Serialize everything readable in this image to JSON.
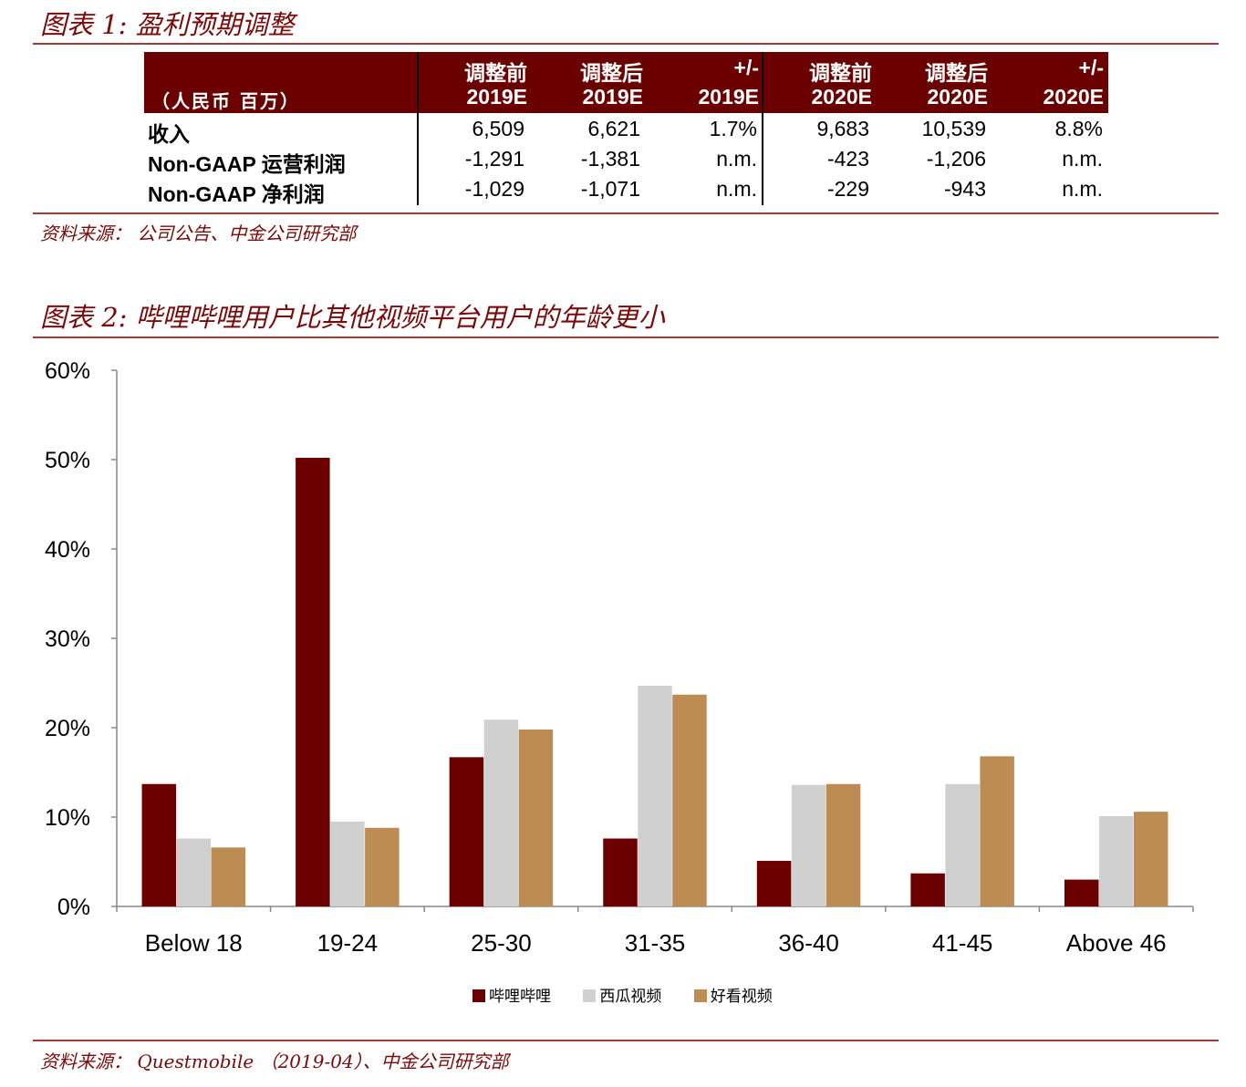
{
  "figure1": {
    "title": "图表 1:  盈利预期调整",
    "unit_label": "（人民币  百万）",
    "headers": [
      {
        "line1": "调整前",
        "line2": "2019E"
      },
      {
        "line1": "调整后",
        "line2": "2019E"
      },
      {
        "line1": "+/-",
        "line2": "2019E"
      },
      {
        "line1": "调整前",
        "line2": "2020E"
      },
      {
        "line1": "调整后",
        "line2": "2020E"
      },
      {
        "line1": "+/-",
        "line2": "2020E"
      }
    ],
    "rows": [
      {
        "label": "收入",
        "values": [
          "6,509",
          "6,621",
          "1.7%",
          "9,683",
          "10,539",
          "8.8%"
        ]
      },
      {
        "label": "Non-GAAP 运营利润",
        "values": [
          "-1,291",
          "-1,381",
          "n.m.",
          "-423",
          "-1,206",
          "n.m."
        ]
      },
      {
        "label": "Non-GAAP 净利润",
        "values": [
          "-1,029",
          "-1,071",
          "n.m.",
          "-229",
          "-943",
          "n.m."
        ]
      }
    ],
    "source": "资料来源：   公司公告、中金公司研究部"
  },
  "figure2": {
    "title": "图表 2:  哔哩哔哩用户比其他视频平台用户的年龄更小",
    "source": "资料来源：   Questmobile   （2019-04）、中金公司研究部"
  },
  "chart_data": {
    "type": "bar",
    "categories": [
      "Below 18",
      "19-24",
      "25-30",
      "31-35",
      "36-40",
      "41-45",
      "Above 46"
    ],
    "series": [
      {
        "name": "哔哩哔哩",
        "color": "#6b0000",
        "values": [
          13.7,
          50.2,
          16.7,
          7.6,
          5.1,
          3.7,
          3.0
        ]
      },
      {
        "name": "西瓜视频",
        "color": "#d0d0d0",
        "values": [
          7.6,
          9.5,
          20.9,
          24.7,
          13.6,
          13.7,
          10.1
        ]
      },
      {
        "name": "好看视频",
        "color": "#bd8c52",
        "values": [
          6.6,
          8.8,
          19.8,
          23.7,
          13.7,
          16.8,
          10.6
        ]
      }
    ],
    "yticks": [
      "0%",
      "10%",
      "20%",
      "30%",
      "40%",
      "50%",
      "60%"
    ],
    "ylim": [
      0,
      60
    ],
    "xlabel": "",
    "ylabel": "",
    "legend_position": "bottom"
  }
}
